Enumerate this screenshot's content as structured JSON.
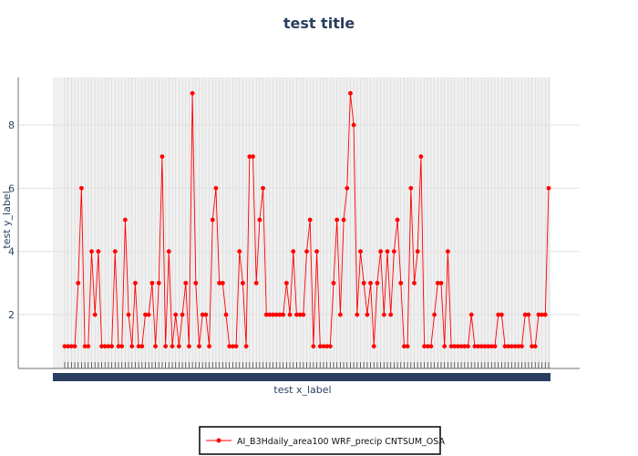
{
  "chart_data": {
    "type": "line",
    "title": "test title",
    "xlabel": "test x_label",
    "ylabel": "test y_label",
    "ylim": [
      0.3,
      9.5
    ],
    "yticks": [
      2,
      4,
      6,
      8
    ],
    "grid": true,
    "legend_position": "bottom-center",
    "series": [
      {
        "name": "AI_B3Hdaily_area100 WRF_precip CNTSUM_OSA",
        "color": "#ff0000",
        "values": [
          1,
          1,
          1,
          1,
          3,
          6,
          1,
          1,
          4,
          2,
          4,
          1,
          1,
          1,
          1,
          4,
          1,
          1,
          5,
          2,
          1,
          3,
          1,
          1,
          2,
          2,
          3,
          1,
          3,
          7,
          1,
          4,
          1,
          2,
          1,
          2,
          3,
          1,
          9,
          3,
          1,
          2,
          2,
          1,
          5,
          6,
          3,
          3,
          2,
          1,
          1,
          1,
          4,
          3,
          1,
          7,
          7,
          3,
          5,
          6,
          2,
          2,
          2,
          2,
          2,
          2,
          3,
          2,
          4,
          2,
          2,
          2,
          4,
          5,
          1,
          4,
          1,
          1,
          1,
          1,
          3,
          5,
          2,
          5,
          6,
          9,
          8,
          2,
          4,
          3,
          2,
          3,
          1,
          3,
          4,
          2,
          4,
          2,
          4,
          5,
          3,
          1,
          1,
          6,
          3,
          4,
          7,
          1,
          1,
          1,
          2,
          3,
          3,
          1,
          4,
          1,
          1,
          1,
          1,
          1,
          1,
          2,
          1,
          1,
          1,
          1,
          1,
          1,
          1,
          2,
          2,
          1,
          1,
          1,
          1,
          1,
          1,
          2,
          2,
          1,
          1,
          2,
          2,
          2,
          6
        ]
      }
    ]
  }
}
